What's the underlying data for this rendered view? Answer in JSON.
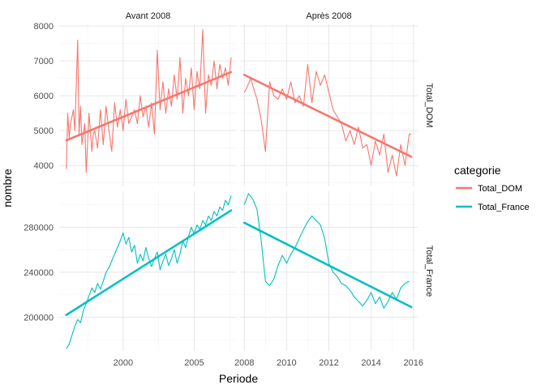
{
  "chart_data": {
    "type": "line",
    "xlabel": "Periode",
    "ylabel": "nombre",
    "facet_cols": [
      "Avant 2008",
      "Après 2008"
    ],
    "facet_rows": [
      "Total_DOM",
      "Total_France"
    ],
    "legend": {
      "title": "categorie",
      "placement": "right",
      "entries": [
        "Total_DOM",
        "Total_France"
      ]
    },
    "colors": {
      "Total_DOM": "#f8766d",
      "Total_France": "#00bfc4"
    },
    "grid": true,
    "x_ticks": {
      "Avant 2008": [
        2000,
        2005
      ],
      "Après 2008": [
        2008,
        2010,
        2012,
        2014,
        2016
      ]
    },
    "y_ticks": {
      "Total_DOM": [
        4000,
        5000,
        6000,
        7000,
        8000
      ],
      "Total_France": [
        200000,
        240000,
        280000
      ]
    },
    "y_tick_labels": {
      "Total_DOM": [
        "4000",
        "5000",
        "6000",
        "7000",
        "8000"
      ],
      "Total_France": [
        "200000",
        "240000",
        "280000"
      ]
    },
    "xlim": {
      "Avant 2008": [
        1995.5,
        2008.0
      ],
      "Après 2008": [
        2007.8,
        2016.2
      ]
    },
    "ylim": {
      "Total_DOM": [
        3400,
        8050
      ],
      "Total_France": [
        170000,
        312000
      ]
    },
    "panels": [
      {
        "col": "Avant 2008",
        "row": "Total_DOM",
        "series": "Total_DOM",
        "x": [
          1996.0,
          1996.1,
          1996.2,
          1996.3,
          1996.5,
          1996.6,
          1996.8,
          1996.9,
          1997.0,
          1997.1,
          1997.3,
          1997.4,
          1997.6,
          1997.8,
          1997.9,
          1998.0,
          1998.2,
          1998.4,
          1998.6,
          1998.8,
          1999.0,
          1999.2,
          1999.4,
          1999.6,
          1999.8,
          2000.0,
          2000.2,
          2000.4,
          2000.6,
          2000.8,
          2001.0,
          2001.2,
          2001.4,
          2001.6,
          2001.8,
          2002.0,
          2002.2,
          2002.4,
          2002.6,
          2002.8,
          2003.0,
          2003.2,
          2003.4,
          2003.6,
          2003.8,
          2004.0,
          2004.2,
          2004.4,
          2004.6,
          2004.8,
          2005.0,
          2005.2,
          2005.4,
          2005.6,
          2005.8,
          2006.0,
          2006.2,
          2006.4,
          2006.6,
          2006.8,
          2007.0,
          2007.2,
          2007.4,
          2007.6
        ],
        "y": [
          3900,
          5500,
          4800,
          5200,
          5600,
          5000,
          7600,
          4900,
          5700,
          4600,
          5200,
          3800,
          5500,
          4400,
          4900,
          5000,
          4500,
          5600,
          4600,
          5700,
          5000,
          4400,
          5800,
          5100,
          5600,
          5000,
          5900,
          5200,
          5400,
          5600,
          5200,
          6000,
          5400,
          5700,
          5100,
          5800,
          4900,
          7300,
          5600,
          6400,
          5500,
          6200,
          5700,
          6600,
          5900,
          7100,
          5500,
          6500,
          6000,
          6800,
          5600,
          6700,
          6200,
          7900,
          5500,
          6600,
          6300,
          7000,
          6200,
          6900,
          6500,
          6800,
          6300,
          7100
        ],
        "trend": [
          [
            1996.0,
            4720
          ],
          [
            2007.6,
            6680
          ]
        ]
      },
      {
        "col": "Après 2008",
        "row": "Total_DOM",
        "series": "Total_DOM",
        "x": [
          2008.0,
          2008.1,
          2008.3,
          2008.4,
          2008.6,
          2008.8,
          2009.0,
          2009.2,
          2009.4,
          2009.6,
          2009.8,
          2010.0,
          2010.2,
          2010.4,
          2010.6,
          2010.8,
          2011.0,
          2011.2,
          2011.4,
          2011.6,
          2011.8,
          2012.0,
          2012.2,
          2012.4,
          2012.6,
          2012.8,
          2013.0,
          2013.2,
          2013.4,
          2013.6,
          2013.8,
          2014.0,
          2014.2,
          2014.4,
          2014.6,
          2014.8,
          2015.0,
          2015.2,
          2015.4,
          2015.6,
          2015.8,
          2015.9
        ],
        "y": [
          6100,
          6200,
          6500,
          6300,
          5900,
          5300,
          4400,
          6400,
          6000,
          5900,
          6200,
          5900,
          6400,
          5800,
          6000,
          5700,
          6900,
          5800,
          6700,
          6300,
          6600,
          6100,
          5600,
          5400,
          5200,
          4700,
          5000,
          4600,
          5100,
          4500,
          4600,
          4000,
          4700,
          4300,
          4900,
          3800,
          4300,
          3700,
          4600,
          4000,
          4900,
          4900
        ],
        "trend": [
          [
            2008.0,
            6600
          ],
          [
            2015.9,
            4250
          ]
        ]
      },
      {
        "col": "Avant 2008",
        "row": "Total_France",
        "series": "Total_France",
        "x": [
          1996.0,
          1996.2,
          1996.4,
          1996.6,
          1996.8,
          1997.0,
          1997.2,
          1997.4,
          1997.6,
          1997.8,
          1998.0,
          1998.2,
          1998.4,
          1998.6,
          1998.8,
          1999.0,
          1999.2,
          1999.4,
          1999.6,
          1999.8,
          2000.0,
          2000.2,
          2000.4,
          2000.6,
          2000.8,
          2001.0,
          2001.2,
          2001.4,
          2001.6,
          2001.8,
          2002.0,
          2002.2,
          2002.4,
          2002.6,
          2002.8,
          2003.0,
          2003.2,
          2003.4,
          2003.6,
          2003.8,
          2004.0,
          2004.2,
          2004.4,
          2004.6,
          2004.8,
          2005.0,
          2005.2,
          2005.4,
          2005.6,
          2005.8,
          2006.0,
          2006.2,
          2006.4,
          2006.6,
          2006.8,
          2007.0,
          2007.2,
          2007.4,
          2007.6
        ],
        "y": [
          172000,
          176000,
          184000,
          192000,
          198000,
          195000,
          206000,
          212000,
          219000,
          226000,
          222000,
          230000,
          225000,
          232000,
          240000,
          244000,
          250000,
          256000,
          262000,
          268000,
          275000,
          265000,
          271000,
          258000,
          264000,
          248000,
          256000,
          250000,
          262000,
          252000,
          245000,
          252000,
          258000,
          242000,
          250000,
          256000,
          246000,
          252000,
          260000,
          248000,
          256000,
          268000,
          262000,
          272000,
          280000,
          274000,
          282000,
          278000,
          286000,
          282000,
          290000,
          286000,
          294000,
          290000,
          298000,
          295000,
          304000,
          300000,
          308000
        ],
        "trend": [
          [
            1996.0,
            202000
          ],
          [
            2007.6,
            295000
          ]
        ]
      },
      {
        "col": "Après 2008",
        "row": "Total_France",
        "series": "Total_France",
        "x": [
          2008.0,
          2008.2,
          2008.4,
          2008.6,
          2008.8,
          2009.0,
          2009.2,
          2009.4,
          2009.6,
          2009.8,
          2010.0,
          2010.2,
          2010.4,
          2010.6,
          2010.8,
          2011.0,
          2011.2,
          2011.4,
          2011.6,
          2011.8,
          2012.0,
          2012.2,
          2012.4,
          2012.6,
          2012.8,
          2013.0,
          2013.2,
          2013.4,
          2013.6,
          2013.8,
          2014.0,
          2014.2,
          2014.4,
          2014.6,
          2014.8,
          2015.0,
          2015.2,
          2015.4,
          2015.6,
          2015.8
        ],
        "y": [
          300000,
          310000,
          305000,
          296000,
          268000,
          232000,
          228000,
          234000,
          246000,
          255000,
          248000,
          256000,
          262000,
          270000,
          278000,
          285000,
          290000,
          286000,
          282000,
          270000,
          248000,
          240000,
          236000,
          230000,
          228000,
          224000,
          218000,
          214000,
          210000,
          215000,
          222000,
          212000,
          218000,
          208000,
          214000,
          222000,
          216000,
          226000,
          230000,
          232000
        ],
        "trend": [
          [
            2008.0,
            284000
          ],
          [
            2015.9,
            209000
          ]
        ]
      }
    ]
  }
}
